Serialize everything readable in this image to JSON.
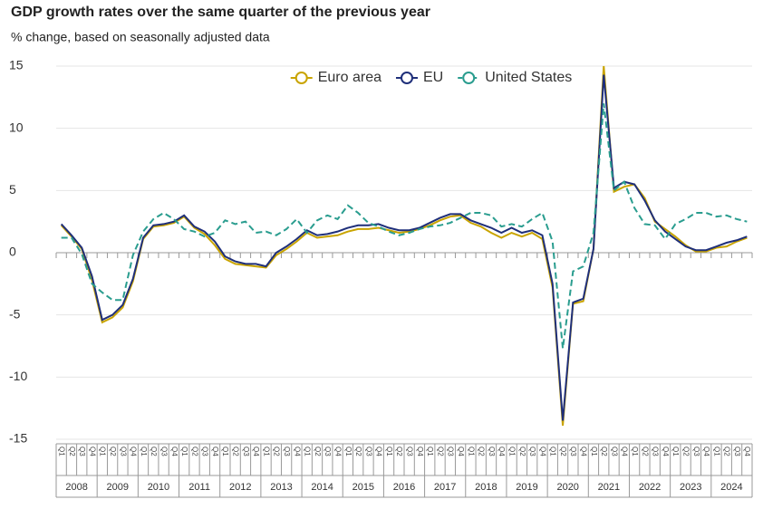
{
  "chart_data": {
    "type": "line",
    "title": "GDP growth rates over the same quarter of the previous year",
    "subtitle": "% change, based on seasonally adjusted data",
    "categories": [
      "Q1",
      "Q2",
      "Q3",
      "Q4",
      "Q1",
      "Q2",
      "Q3",
      "Q4",
      "Q1",
      "Q2",
      "Q3",
      "Q4",
      "Q1",
      "Q2",
      "Q3",
      "Q4",
      "Q1",
      "Q2",
      "Q3",
      "Q4",
      "Q1",
      "Q2",
      "Q3",
      "Q4",
      "Q1",
      "Q2",
      "Q3",
      "Q4",
      "Q1",
      "Q2",
      "Q3",
      "Q4",
      "Q1",
      "Q2",
      "Q3",
      "Q4",
      "Q1",
      "Q2",
      "Q3",
      "Q4",
      "Q1",
      "Q2",
      "Q3",
      "Q4",
      "Q1",
      "Q2",
      "Q3",
      "Q4",
      "Q1",
      "Q2",
      "Q3",
      "Q4",
      "Q1",
      "Q2",
      "Q3",
      "Q4",
      "Q1",
      "Q2",
      "Q3",
      "Q4",
      "Q1",
      "Q2",
      "Q3",
      "Q4",
      "Q1",
      "Q2",
      "Q3",
      "Q4"
    ],
    "years": [
      "2008",
      "2009",
      "2010",
      "2011",
      "2012",
      "2013",
      "2014",
      "2015",
      "2016",
      "2017",
      "2018",
      "2019",
      "2020",
      "2021",
      "2022",
      "2023",
      "2024"
    ],
    "series": [
      {
        "name": "Euro area",
        "color": "#c9a400",
        "style": "solid",
        "values": [
          2.2,
          1.3,
          0.3,
          -2.2,
          -5.6,
          -5.2,
          -4.4,
          -2.3,
          1.1,
          2.1,
          2.2,
          2.4,
          2.9,
          2.0,
          1.5,
          0.6,
          -0.5,
          -0.9,
          -1.0,
          -1.1,
          -1.2,
          -0.2,
          0.3,
          0.9,
          1.6,
          1.2,
          1.3,
          1.4,
          1.7,
          1.9,
          1.9,
          2.0,
          1.8,
          1.6,
          1.7,
          1.9,
          2.2,
          2.6,
          2.9,
          3.0,
          2.4,
          2.1,
          1.6,
          1.2,
          1.6,
          1.3,
          1.6,
          1.1,
          -2.8,
          -13.9,
          -4.1,
          -3.9,
          0.3,
          15.0,
          4.9,
          5.3,
          5.5,
          4.4,
          2.5,
          1.9,
          1.3,
          0.6,
          0.1,
          0.1,
          0.4,
          0.5,
          0.9,
          1.2
        ]
      },
      {
        "name": "EU",
        "color": "#1f2f7a",
        "style": "solid",
        "values": [
          2.3,
          1.4,
          0.4,
          -1.9,
          -5.4,
          -5.0,
          -4.2,
          -2.1,
          1.2,
          2.2,
          2.3,
          2.5,
          3.0,
          2.1,
          1.7,
          0.9,
          -0.3,
          -0.7,
          -0.9,
          -0.9,
          -1.1,
          0.0,
          0.5,
          1.1,
          1.8,
          1.4,
          1.5,
          1.7,
          2.0,
          2.2,
          2.2,
          2.3,
          2.0,
          1.8,
          1.8,
          2.0,
          2.4,
          2.8,
          3.1,
          3.1,
          2.6,
          2.3,
          2.0,
          1.6,
          2.0,
          1.6,
          1.8,
          1.4,
          -2.5,
          -13.5,
          -4.0,
          -3.7,
          0.3,
          14.3,
          5.2,
          5.7,
          5.5,
          4.2,
          2.6,
          1.7,
          1.1,
          0.5,
          0.2,
          0.2,
          0.5,
          0.8,
          1.0,
          1.3
        ]
      },
      {
        "name": "United States",
        "color": "#2a9d8f",
        "style": "dashed",
        "values": [
          1.2,
          1.2,
          -0.1,
          -2.5,
          -3.2,
          -3.8,
          -3.8,
          -0.2,
          1.7,
          2.7,
          3.2,
          2.7,
          1.9,
          1.7,
          1.3,
          1.6,
          2.6,
          2.3,
          2.5,
          1.6,
          1.7,
          1.4,
          1.9,
          2.7,
          1.6,
          2.6,
          3.0,
          2.7,
          3.8,
          3.2,
          2.4,
          2.1,
          1.7,
          1.4,
          1.6,
          1.9,
          2.1,
          2.2,
          2.4,
          2.8,
          3.2,
          3.2,
          3.0,
          2.1,
          2.3,
          2.1,
          2.7,
          3.2,
          0.9,
          -7.7,
          -1.5,
          -1.1,
          1.6,
          12.0,
          5.0,
          5.7,
          3.6,
          2.3,
          2.2,
          1.1,
          2.3,
          2.7,
          3.2,
          3.2,
          2.9,
          3.0,
          2.7,
          2.5
        ]
      }
    ],
    "ylim": [
      -15,
      15
    ],
    "yticks": [
      -15,
      -10,
      -5,
      0,
      5,
      10,
      15
    ],
    "grid": true,
    "legend": "top"
  }
}
